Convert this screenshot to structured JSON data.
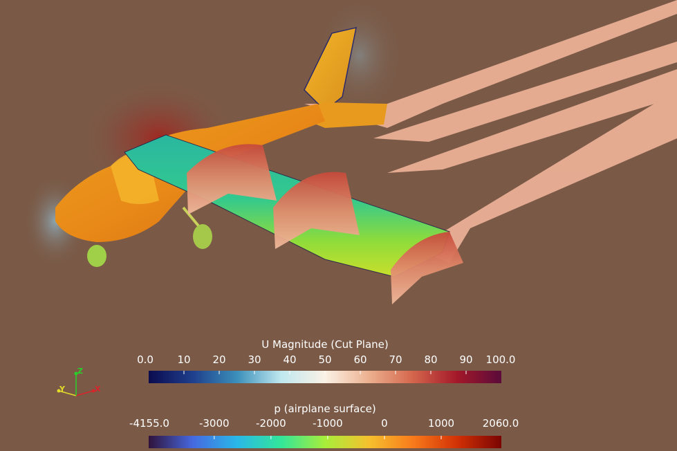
{
  "view": {
    "background": "#7a5a47"
  },
  "colorbars": [
    {
      "title": "U Magnitude (Cut Plane)",
      "min_label": "0.0",
      "max_label": "100.0",
      "ticks": [
        "10",
        "20",
        "30",
        "40",
        "50",
        "60",
        "70",
        "80",
        "90"
      ],
      "colormap": "cool-to-warm extended",
      "colors": [
        "#0b0b4e",
        "#1f3f8c",
        "#3b8fba",
        "#bfe8ef",
        "#fbf2e6",
        "#ecb08f",
        "#d4654c",
        "#a3182a",
        "#5a0b3a"
      ]
    },
    {
      "title": "p (airplane surface)",
      "min_label": "-4155.0",
      "max_label": "2060.0",
      "ticks": [
        "-3000",
        "-2000",
        "-1000",
        "0",
        "1000"
      ],
      "tick_values": [
        -3000,
        -2000,
        -1000,
        0,
        1000
      ],
      "range": [
        -4155.0,
        2060.0
      ],
      "colormap": "turbo",
      "colors": [
        "#30123b",
        "#4669e0",
        "#2ab7e8",
        "#32e69a",
        "#a8ee3a",
        "#f6c02e",
        "#f87a1b",
        "#d23105",
        "#7a0403"
      ]
    }
  ],
  "orientation_axes": {
    "x_label": "X",
    "y_label": "Y",
    "z_label": "Z",
    "x_color": "#d8242b",
    "y_color": "#e4dd28",
    "z_color": "#2ad02a"
  }
}
